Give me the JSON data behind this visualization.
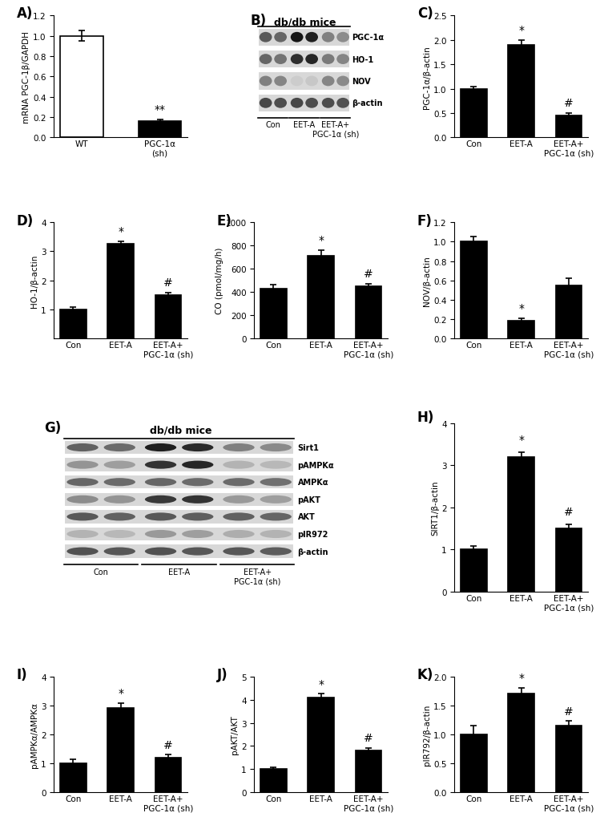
{
  "panel_A": {
    "categories": [
      "WT",
      "PGC-1α\n(sh)"
    ],
    "values": [
      1.0,
      0.16
    ],
    "errors": [
      0.05,
      0.02
    ],
    "colors": [
      "white",
      "black"
    ],
    "ylabel": "mRNA PGC-1β/GAPDH",
    "ylim": [
      0,
      1.2
    ],
    "yticks": [
      0.0,
      0.2,
      0.4,
      0.6,
      0.8,
      1.0,
      1.2
    ],
    "sig_labels": [
      "",
      "**"
    ]
  },
  "panel_C": {
    "categories": [
      "Con",
      "EET-A",
      "EET-A+\nPGC-1α (sh)"
    ],
    "values": [
      1.0,
      1.9,
      0.45
    ],
    "errors": [
      0.05,
      0.1,
      0.05
    ],
    "colors": [
      "black",
      "black",
      "black"
    ],
    "ylabel": "PGC-1α/β-actin",
    "ylim": [
      0,
      2.5
    ],
    "yticks": [
      0.0,
      0.5,
      1.0,
      1.5,
      2.0,
      2.5
    ],
    "sig_labels": [
      "",
      "*",
      "#"
    ]
  },
  "panel_D": {
    "categories": [
      "Con",
      "EET-A",
      "EET-A+\nPGC-1α (sh)"
    ],
    "values": [
      1.0,
      3.25,
      1.5
    ],
    "errors": [
      0.08,
      0.1,
      0.08
    ],
    "colors": [
      "black",
      "black",
      "black"
    ],
    "ylabel": "HO-1/β-actin",
    "ylim": [
      0,
      4
    ],
    "yticks": [
      1,
      2,
      3,
      4
    ],
    "sig_labels": [
      "",
      "*",
      "#"
    ]
  },
  "panel_E": {
    "categories": [
      "Con",
      "EET-A",
      "EET-A+\nPGC-1α (sh)"
    ],
    "values": [
      430,
      710,
      450
    ],
    "errors": [
      30,
      50,
      20
    ],
    "colors": [
      "black",
      "black",
      "black"
    ],
    "ylabel": "CO (pmol/mg/h)",
    "ylim": [
      0,
      1000
    ],
    "yticks": [
      0,
      200,
      400,
      600,
      800,
      1000
    ],
    "sig_labels": [
      "",
      "*",
      "#"
    ]
  },
  "panel_F": {
    "categories": [
      "Con",
      "EET-A",
      "EET-A+\nPGC-1α (sh)"
    ],
    "values": [
      1.0,
      0.18,
      0.55
    ],
    "errors": [
      0.05,
      0.03,
      0.07
    ],
    "colors": [
      "black",
      "black",
      "black"
    ],
    "ylabel": "NOV/β-actin",
    "ylim": [
      0,
      1.2
    ],
    "yticks": [
      0.0,
      0.2,
      0.4,
      0.6,
      0.8,
      1.0,
      1.2
    ],
    "sig_labels": [
      "",
      "*",
      ""
    ]
  },
  "panel_H": {
    "categories": [
      "Con",
      "EET-A",
      "EET-A+\nPGC-1α (sh)"
    ],
    "values": [
      1.0,
      3.2,
      1.5
    ],
    "errors": [
      0.08,
      0.12,
      0.1
    ],
    "colors": [
      "black",
      "black",
      "black"
    ],
    "ylabel": "SIRT1/β-actin",
    "ylim": [
      0,
      4
    ],
    "yticks": [
      0,
      1,
      2,
      3,
      4
    ],
    "sig_labels": [
      "",
      "*",
      "#"
    ]
  },
  "panel_I": {
    "categories": [
      "Con",
      "EET-A",
      "EET-A+\nPGC-1α (sh)"
    ],
    "values": [
      1.0,
      2.9,
      1.2
    ],
    "errors": [
      0.15,
      0.18,
      0.1
    ],
    "colors": [
      "black",
      "black",
      "black"
    ],
    "ylabel": "pAMPKα/AMPKα",
    "ylim": [
      0,
      4
    ],
    "yticks": [
      0,
      1,
      2,
      3,
      4
    ],
    "sig_labels": [
      "",
      "*",
      "#"
    ]
  },
  "panel_J": {
    "categories": [
      "Con",
      "EET-A",
      "EET-A+\nPGC-1α (sh)"
    ],
    "values": [
      1.0,
      4.1,
      1.8
    ],
    "errors": [
      0.08,
      0.15,
      0.12
    ],
    "colors": [
      "black",
      "black",
      "black"
    ],
    "ylabel": "pAKT/AKT",
    "ylim": [
      0,
      5
    ],
    "yticks": [
      0,
      1,
      2,
      3,
      4,
      5
    ],
    "sig_labels": [
      "",
      "*",
      "#"
    ]
  },
  "panel_K": {
    "categories": [
      "Con",
      "EET-A",
      "EET-A+\nPGC-1α (sh)"
    ],
    "values": [
      1.0,
      1.7,
      1.15
    ],
    "errors": [
      0.15,
      0.1,
      0.08
    ],
    "colors": [
      "black",
      "black",
      "black"
    ],
    "ylabel": "pIR792/β-actin",
    "ylim": [
      0,
      2
    ],
    "yticks": [
      0.0,
      0.5,
      1.0,
      1.5,
      2.0
    ],
    "sig_labels": [
      "",
      "*",
      "#"
    ]
  },
  "panel_B": {
    "title": "db/db mice",
    "labels": [
      "PGC-1α",
      "HO-1",
      "NOV",
      "β-actin"
    ],
    "group_labels": [
      "Con",
      "EET-A",
      "EET-A+\nPGC-1α (sh)"
    ],
    "intensities": [
      [
        0.65,
        0.6,
        0.92,
        0.88,
        0.5,
        0.45
      ],
      [
        0.6,
        0.55,
        0.82,
        0.85,
        0.52,
        0.48
      ],
      [
        0.5,
        0.48,
        0.2,
        0.22,
        0.48,
        0.46
      ],
      [
        0.72,
        0.7,
        0.72,
        0.7,
        0.7,
        0.68
      ]
    ]
  },
  "panel_G": {
    "title": "db/db mice",
    "labels": [
      "Sirt1",
      "pAMPKα",
      "AMPKα",
      "pAKT",
      "AKT",
      "pIR972",
      "β-actin"
    ],
    "group_labels": [
      "Con",
      "EET-A",
      "EET-A+\nPGC-1α (sh)"
    ],
    "intensities": [
      [
        0.62,
        0.58,
        0.88,
        0.84,
        0.5,
        0.46
      ],
      [
        0.42,
        0.38,
        0.8,
        0.85,
        0.3,
        0.28
      ],
      [
        0.6,
        0.58,
        0.6,
        0.58,
        0.58,
        0.56
      ],
      [
        0.45,
        0.42,
        0.78,
        0.8,
        0.4,
        0.38
      ],
      [
        0.65,
        0.62,
        0.65,
        0.63,
        0.62,
        0.6
      ],
      [
        0.3,
        0.28,
        0.4,
        0.38,
        0.32,
        0.3
      ],
      [
        0.68,
        0.66,
        0.68,
        0.66,
        0.66,
        0.64
      ]
    ]
  }
}
